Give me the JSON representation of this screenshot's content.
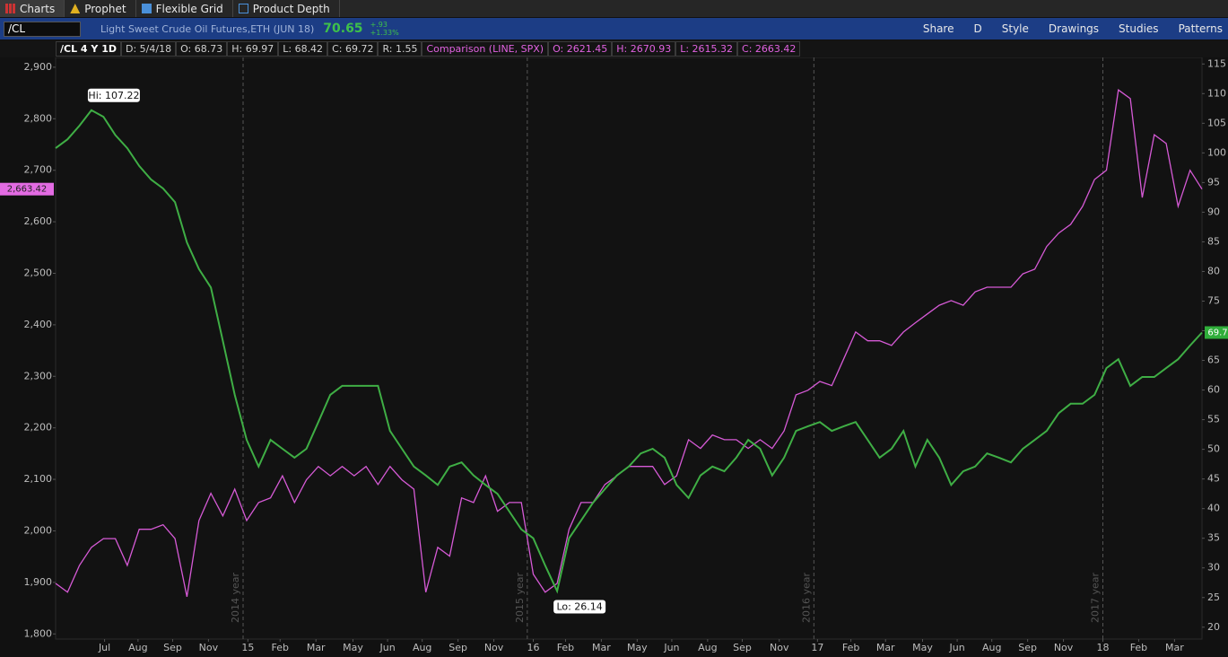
{
  "ui": {
    "tabs": [
      "Charts",
      "Prophet",
      "Flexible Grid",
      "Product Depth"
    ],
    "symbol": "/CL",
    "description": "Light Sweet Crude Oil Futures,ETH (JUN 18)",
    "last": "70.65",
    "change": "+.93",
    "change_pct": "+1.33%",
    "tools": [
      "Share",
      "D",
      "Style",
      "Drawings",
      "Studies",
      "Patterns"
    ],
    "info": [
      "/CL 4 Y 1D",
      "D: 5/4/18",
      "O: 68.73",
      "H: 69.97",
      "L: 68.42",
      "C: 69.72",
      "R: 1.55"
    ],
    "comparison_info": [
      "Comparison (LINE, SPX)",
      "O: 2621.45",
      "H: 2670.93",
      "L: 2615.32",
      "C: 2663.42"
    ]
  },
  "chart_data": {
    "type": "line",
    "xlim": [
      0,
      96
    ],
    "xticks": [
      {
        "value": 4.1,
        "label": "Jul"
      },
      {
        "value": 6.9,
        "label": "Aug"
      },
      {
        "value": 9.8,
        "label": "Sep"
      },
      {
        "value": 12.8,
        "label": "Nov"
      },
      {
        "value": 16.1,
        "label": "15"
      },
      {
        "value": 18.8,
        "label": "Feb"
      },
      {
        "value": 21.8,
        "label": "Mar"
      },
      {
        "value": 24.9,
        "label": "May"
      },
      {
        "value": 27.8,
        "label": "Jun"
      },
      {
        "value": 30.7,
        "label": "Aug"
      },
      {
        "value": 33.7,
        "label": "Sep"
      },
      {
        "value": 36.7,
        "label": "Nov"
      },
      {
        "value": 40.0,
        "label": "16"
      },
      {
        "value": 42.7,
        "label": "Feb"
      },
      {
        "value": 45.7,
        "label": "Mar"
      },
      {
        "value": 48.7,
        "label": "May"
      },
      {
        "value": 51.6,
        "label": "Jun"
      },
      {
        "value": 54.6,
        "label": "Aug"
      },
      {
        "value": 57.5,
        "label": "Sep"
      },
      {
        "value": 60.6,
        "label": "Nov"
      },
      {
        "value": 63.8,
        "label": "17"
      },
      {
        "value": 66.6,
        "label": "Feb"
      },
      {
        "value": 69.5,
        "label": "Mar"
      },
      {
        "value": 72.6,
        "label": "May"
      },
      {
        "value": 75.5,
        "label": "Jun"
      },
      {
        "value": 78.4,
        "label": "Aug"
      },
      {
        "value": 81.4,
        "label": "Sep"
      },
      {
        "value": 84.4,
        "label": "Nov"
      },
      {
        "value": 87.7,
        "label": "18"
      },
      {
        "value": 90.7,
        "label": "Feb"
      },
      {
        "value": 93.7,
        "label": "Mar"
      }
    ],
    "ylim": [
      1790,
      2919
    ],
    "yticks": [
      {
        "value": 1800,
        "label": "1,800"
      },
      {
        "value": 1900,
        "label": "1,900"
      },
      {
        "value": 2000,
        "label": "2,000"
      },
      {
        "value": 2100,
        "label": "2,100"
      },
      {
        "value": 2200,
        "label": "2,200"
      },
      {
        "value": 2300,
        "label": "2,300"
      },
      {
        "value": 2400,
        "label": "2,400"
      },
      {
        "value": 2500,
        "label": "2,500"
      },
      {
        "value": 2600,
        "label": "2,600"
      },
      {
        "value": 2700,
        "label": "2,700"
      },
      {
        "value": 2800,
        "label": "2,800"
      },
      {
        "value": 2900,
        "label": "2,900"
      }
    ],
    "y2lim": [
      18,
      116.1
    ],
    "y2ticks": [
      20,
      25,
      30,
      35,
      40,
      45,
      50,
      55,
      60,
      65,
      70,
      75,
      80,
      85,
      90,
      95,
      100,
      105,
      110,
      115
    ],
    "annotations": [
      {
        "x": 15.7,
        "label": "2014 year"
      },
      {
        "x": 39.5,
        "label": "2015 year"
      },
      {
        "x": 63.5,
        "label": "2016 year"
      },
      {
        "x": 87.7,
        "label": "2017 year"
      }
    ],
    "hi_label": "Hi: 107.22",
    "lo_label": "Lo: 26.14",
    "series": [
      {
        "name": "SPX",
        "color": "#d65ad6",
        "axis": "y",
        "last_label": "2,663.42",
        "values": [
          1898,
          1881,
          1933,
          1968,
          1985,
          1985,
          1933,
          2003,
          2003,
          2012,
          1985,
          1872,
          2020,
          2073,
          2029,
          2081,
          2020,
          2055,
          2064,
          2107,
          2055,
          2099,
          2125,
          2107,
          2125,
          2107,
          2125,
          2090,
          2125,
          2099,
          2081,
          1881,
          1968,
          1951,
          2064,
          2055,
          2107,
          2038,
          2055,
          2055,
          1916,
          1881,
          1898,
          2003,
          2055,
          2055,
          2090,
          2107,
          2125,
          2125,
          2125,
          2090,
          2107,
          2177,
          2160,
          2186,
          2177,
          2177,
          2160,
          2177,
          2160,
          2194,
          2264,
          2273,
          2290,
          2282,
          2334,
          2386,
          2369,
          2369,
          2360,
          2386,
          2404,
          2421,
          2438,
          2447,
          2438,
          2464,
          2473,
          2473,
          2473,
          2499,
          2508,
          2552,
          2578,
          2595,
          2630,
          2682,
          2700,
          2856,
          2839,
          2647,
          2769,
          2752,
          2630,
          2700,
          2663.4
        ]
      },
      {
        "name": "/CL",
        "color": "#3fae45",
        "axis": "y2",
        "last_label": "69.7",
        "values": [
          100.8,
          102.3,
          104.6,
          107.2,
          106.1,
          103.0,
          100.8,
          97.8,
          95.5,
          94.0,
          91.7,
          84.9,
          80.4,
          77.3,
          68.3,
          59.2,
          51.6,
          47.1,
          51.6,
          50.1,
          48.6,
          50.1,
          54.6,
          59.2,
          60.7,
          60.7,
          60.7,
          60.7,
          53.1,
          50.1,
          47.1,
          45.6,
          44.0,
          47.1,
          47.8,
          45.6,
          44.0,
          42.5,
          39.5,
          36.5,
          35.0,
          30.4,
          26.1,
          35.0,
          38.0,
          41.0,
          43.3,
          45.6,
          47.1,
          49.3,
          50.1,
          48.6,
          44.0,
          41.8,
          45.6,
          47.1,
          46.3,
          48.6,
          51.6,
          50.1,
          45.6,
          48.6,
          53.1,
          53.9,
          54.6,
          53.1,
          53.9,
          54.6,
          51.6,
          48.6,
          50.1,
          53.1,
          47.1,
          51.6,
          48.6,
          44.0,
          46.3,
          47.1,
          49.3,
          48.6,
          47.8,
          50.1,
          51.6,
          53.1,
          56.1,
          57.7,
          57.7,
          59.2,
          63.7,
          65.2,
          60.7,
          62.2,
          62.2,
          63.7,
          65.2,
          67.5,
          69.7
        ]
      }
    ]
  }
}
